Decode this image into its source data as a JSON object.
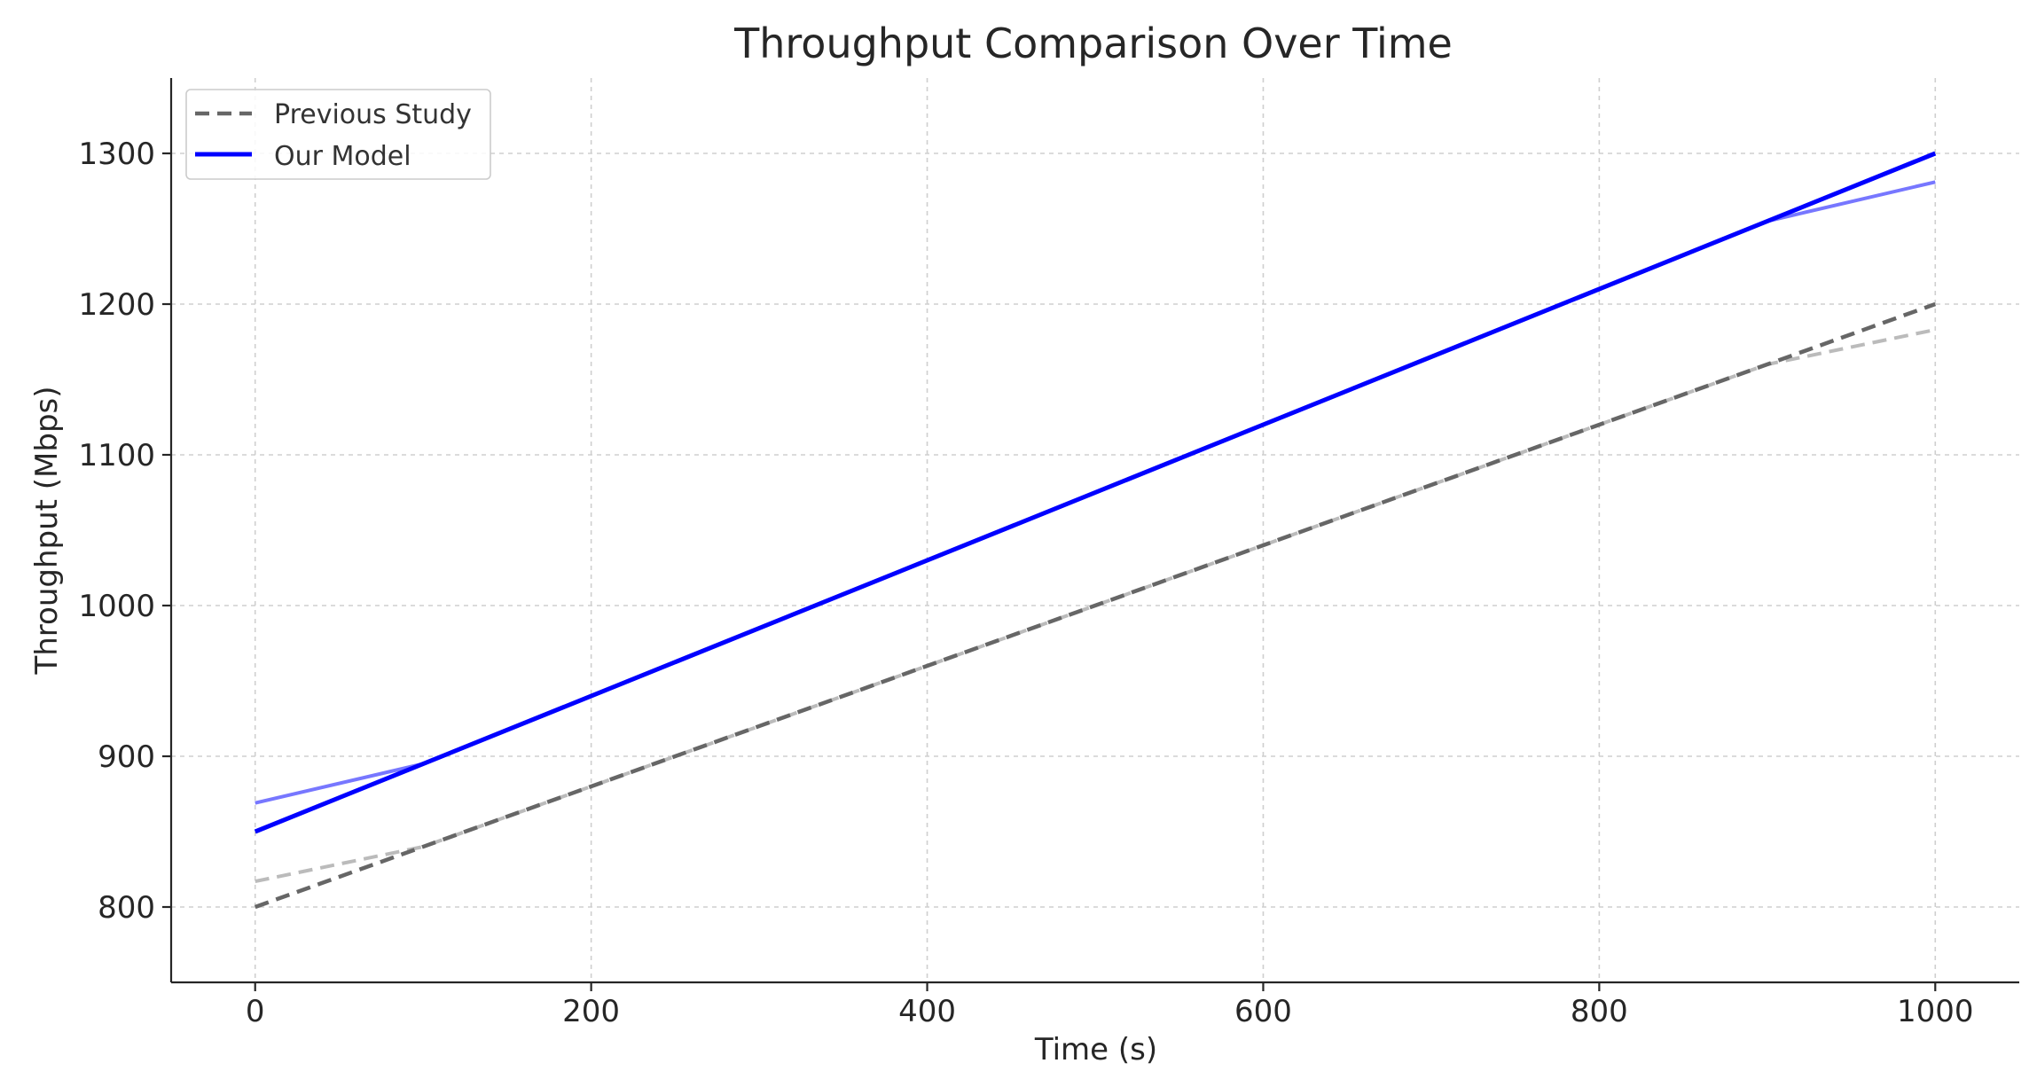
{
  "chart_data": {
    "type": "line",
    "title": "Throughput Comparison Over Time",
    "xlabel": "Time (s)",
    "ylabel": "Throughput (Mbps)",
    "xlim": [
      -50,
      1050
    ],
    "ylim": [
      750,
      1350
    ],
    "xticks": [
      0,
      200,
      400,
      600,
      800,
      1000
    ],
    "yticks": [
      800,
      900,
      1000,
      1100,
      1200,
      1300
    ],
    "grid": true,
    "legend_position": "upper-left",
    "series": [
      {
        "name": "Previous Study",
        "style": "dashed",
        "color": "#666666",
        "x": [
          0,
          1000
        ],
        "y": [
          800,
          1200
        ]
      },
      {
        "name": "Our Model",
        "style": "solid",
        "color": "#0000ff",
        "x": [
          0,
          1000
        ],
        "y": [
          850,
          1300
        ]
      }
    ],
    "unlabeled_series": [
      {
        "style": "dashed",
        "color": "#bbbbbb",
        "x": [
          0,
          100,
          900,
          1000
        ],
        "y": [
          817,
          840,
          1160,
          1183
        ]
      },
      {
        "style": "solid",
        "color": "#7777ff",
        "x": [
          0,
          100,
          900,
          1000
        ],
        "y": [
          869,
          895,
          1255,
          1281
        ]
      }
    ]
  }
}
